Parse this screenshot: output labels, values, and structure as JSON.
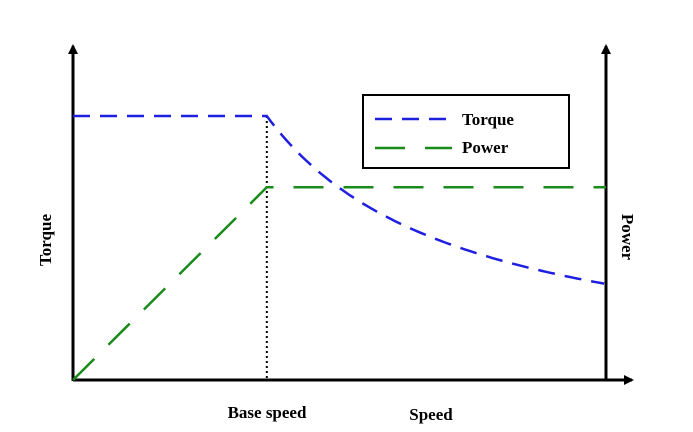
{
  "chart_data": {
    "type": "line",
    "title": "",
    "xlabel": "Speed",
    "ylabel_left": "Torque",
    "ylabel_right": "Power",
    "x_annotation": "Base speed",
    "base_speed": 1.0,
    "xlim": [
      0,
      2.75
    ],
    "ylim": [
      0,
      1.25
    ],
    "grid": false,
    "legend_position": "top-right",
    "series": [
      {
        "name": "Torque",
        "color": "#1f1fe0",
        "dash": "long-dash",
        "x": [
          0,
          1.0,
          1.1,
          1.25,
          1.5,
          1.75,
          2.0,
          2.25,
          2.5,
          2.75
        ],
        "y": [
          1.0,
          1.0,
          0.909,
          0.8,
          0.667,
          0.571,
          0.5,
          0.444,
          0.4,
          0.364
        ]
      },
      {
        "name": "Power",
        "color": "#1a8a1a",
        "dash": "extra-long-dash",
        "x": [
          0,
          1.0,
          2.75
        ],
        "y": [
          0,
          0.73,
          0.73
        ]
      }
    ]
  }
}
